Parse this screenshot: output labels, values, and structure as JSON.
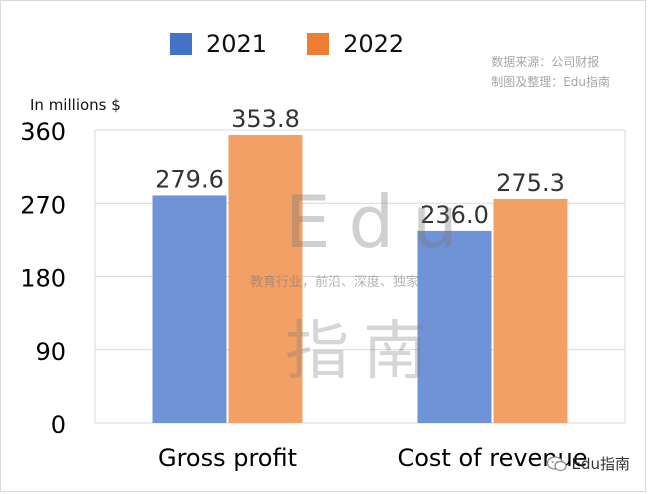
{
  "legend": {
    "items": [
      {
        "label": "2021",
        "color": "#5b86d4"
      },
      {
        "label": "2022",
        "color": "#f08c4d"
      }
    ]
  },
  "source": {
    "line1": "数据来源：公司财报",
    "line2": "制图及整理：Edu指南"
  },
  "watermark": {
    "latin": "Edu",
    "slogan": "教育行业，前沿、深度、独家",
    "cn": "指南"
  },
  "brand": {
    "label": "Edu指南",
    "icon": "wechat-icon"
  },
  "chart_data": {
    "type": "bar",
    "ylabel": "In millions $",
    "categories": [
      "Gross profit",
      "Cost of revenue"
    ],
    "series": [
      {
        "name": "2021",
        "color": "#6f93d6",
        "values": [
          279.6,
          236.0
        ],
        "labels": [
          "279.6",
          "236.0"
        ]
      },
      {
        "name": "2022",
        "color": "#f2a065",
        "values": [
          353.8,
          275.3
        ],
        "labels": [
          "353.8",
          "275.3"
        ]
      }
    ],
    "yticks": [
      0,
      90,
      180,
      270,
      360
    ],
    "ylim": [
      0,
      360
    ],
    "grid": true,
    "legend_position": "top"
  }
}
